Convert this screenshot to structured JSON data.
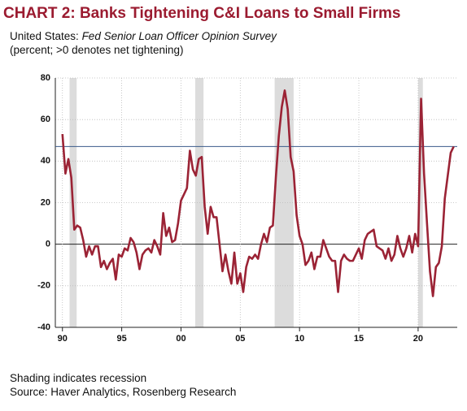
{
  "chart_data": {
    "type": "line",
    "title": "CHART 2: Banks Tightening C&I Loans to Small Firms",
    "subtitle_prefix": "United States: ",
    "subtitle_italic": "Fed Senior Loan Officer Opinion Survey",
    "units_note": "(percent; >0 denotes net tightening)",
    "footnotes": [
      "Shading indicates recession",
      "Source: Haver Analytics, Rosenberg Research"
    ],
    "color": "#9b2335",
    "x": [
      1990,
      1990.25,
      1990.5,
      1990.75,
      1991,
      1991.25,
      1991.5,
      1991.75,
      1992,
      1992.25,
      1992.5,
      1992.75,
      1993,
      1993.25,
      1993.5,
      1993.75,
      1994,
      1994.25,
      1994.5,
      1994.75,
      1995,
      1995.25,
      1995.5,
      1995.75,
      1996,
      1996.25,
      1996.5,
      1996.75,
      1997,
      1997.25,
      1997.5,
      1997.75,
      1998,
      1998.25,
      1998.5,
      1998.75,
      1999,
      1999.25,
      1999.5,
      1999.75,
      2000,
      2000.25,
      2000.5,
      2000.75,
      2001,
      2001.25,
      2001.5,
      2001.75,
      2002,
      2002.25,
      2002.5,
      2002.75,
      2003,
      2003.25,
      2003.5,
      2003.75,
      2004,
      2004.25,
      2004.5,
      2004.75,
      2005,
      2005.25,
      2005.5,
      2005.75,
      2006,
      2006.25,
      2006.5,
      2006.75,
      2007,
      2007.25,
      2007.5,
      2007.75,
      2008,
      2008.25,
      2008.5,
      2008.75,
      2009,
      2009.25,
      2009.5,
      2009.75,
      2010,
      2010.25,
      2010.5,
      2010.75,
      2011,
      2011.25,
      2011.5,
      2011.75,
      2012,
      2012.25,
      2012.5,
      2012.75,
      2013,
      2013.25,
      2013.5,
      2013.75,
      2014,
      2014.25,
      2014.5,
      2014.75,
      2015,
      2015.25,
      2015.5,
      2015.75,
      2016,
      2016.25,
      2016.5,
      2016.75,
      2017,
      2017.25,
      2017.5,
      2017.75,
      2018,
      2018.25,
      2018.5,
      2018.75,
      2019,
      2019.25,
      2019.5,
      2019.75,
      2020,
      2020.25,
      2020.5,
      2020.75,
      2021,
      2021.25,
      2021.5,
      2021.75,
      2022,
      2022.25,
      2022.5,
      2022.75,
      2023
    ],
    "values": [
      53,
      34,
      41,
      32,
      7,
      9,
      8,
      2,
      -6,
      -1,
      -5,
      -1,
      -1,
      -11,
      -8,
      -12,
      -9,
      -7,
      -17,
      -5,
      -6,
      -2,
      -3,
      3,
      1,
      -4,
      -12,
      -5,
      -3,
      -2,
      -4,
      2,
      -1,
      -5,
      15,
      4,
      8,
      1,
      2,
      10,
      21,
      24,
      27,
      45,
      36,
      33,
      41,
      42,
      18,
      5,
      18,
      13,
      13,
      0,
      -13,
      -5,
      -13,
      -19,
      -4,
      -19,
      -14,
      -23,
      -11,
      -6,
      -7,
      -5,
      -7,
      0,
      5,
      1,
      8,
      9,
      32,
      52,
      66,
      74,
      65,
      42,
      35,
      14,
      4,
      0,
      -10,
      -8,
      -4,
      -12,
      -6,
      -6,
      2,
      -2,
      -6,
      -8,
      -8,
      -23,
      -8,
      -5,
      -7,
      -8,
      -8,
      -5,
      -2,
      -7,
      2,
      5,
      6,
      7,
      -1,
      -2,
      -3,
      -7,
      -2,
      -8,
      -5,
      4,
      -2,
      -6,
      -2,
      4,
      -4,
      5,
      -1,
      70,
      34,
      10,
      -13,
      -25,
      -11,
      -9,
      -1,
      22,
      33,
      44,
      47
    ],
    "recessions": [
      [
        1990.6,
        1991.2
      ],
      [
        2001.2,
        2001.9
      ],
      [
        2007.9,
        2009.5
      ],
      [
        2020.0,
        2020.4
      ]
    ],
    "reference_line": 47,
    "xlim": [
      1989.4,
      2023.3
    ],
    "xticks": [
      {
        "value": 1990,
        "label": "90"
      },
      {
        "value": 1995,
        "label": "95"
      },
      {
        "value": 2000,
        "label": "00"
      },
      {
        "value": 2005,
        "label": "05"
      },
      {
        "value": 2010,
        "label": "10"
      },
      {
        "value": 2015,
        "label": "15"
      },
      {
        "value": 2020,
        "label": "20"
      }
    ],
    "ylim": [
      -40,
      80
    ],
    "yticks": [
      80,
      60,
      40,
      20,
      0,
      -20,
      -40
    ],
    "grid": true
  }
}
